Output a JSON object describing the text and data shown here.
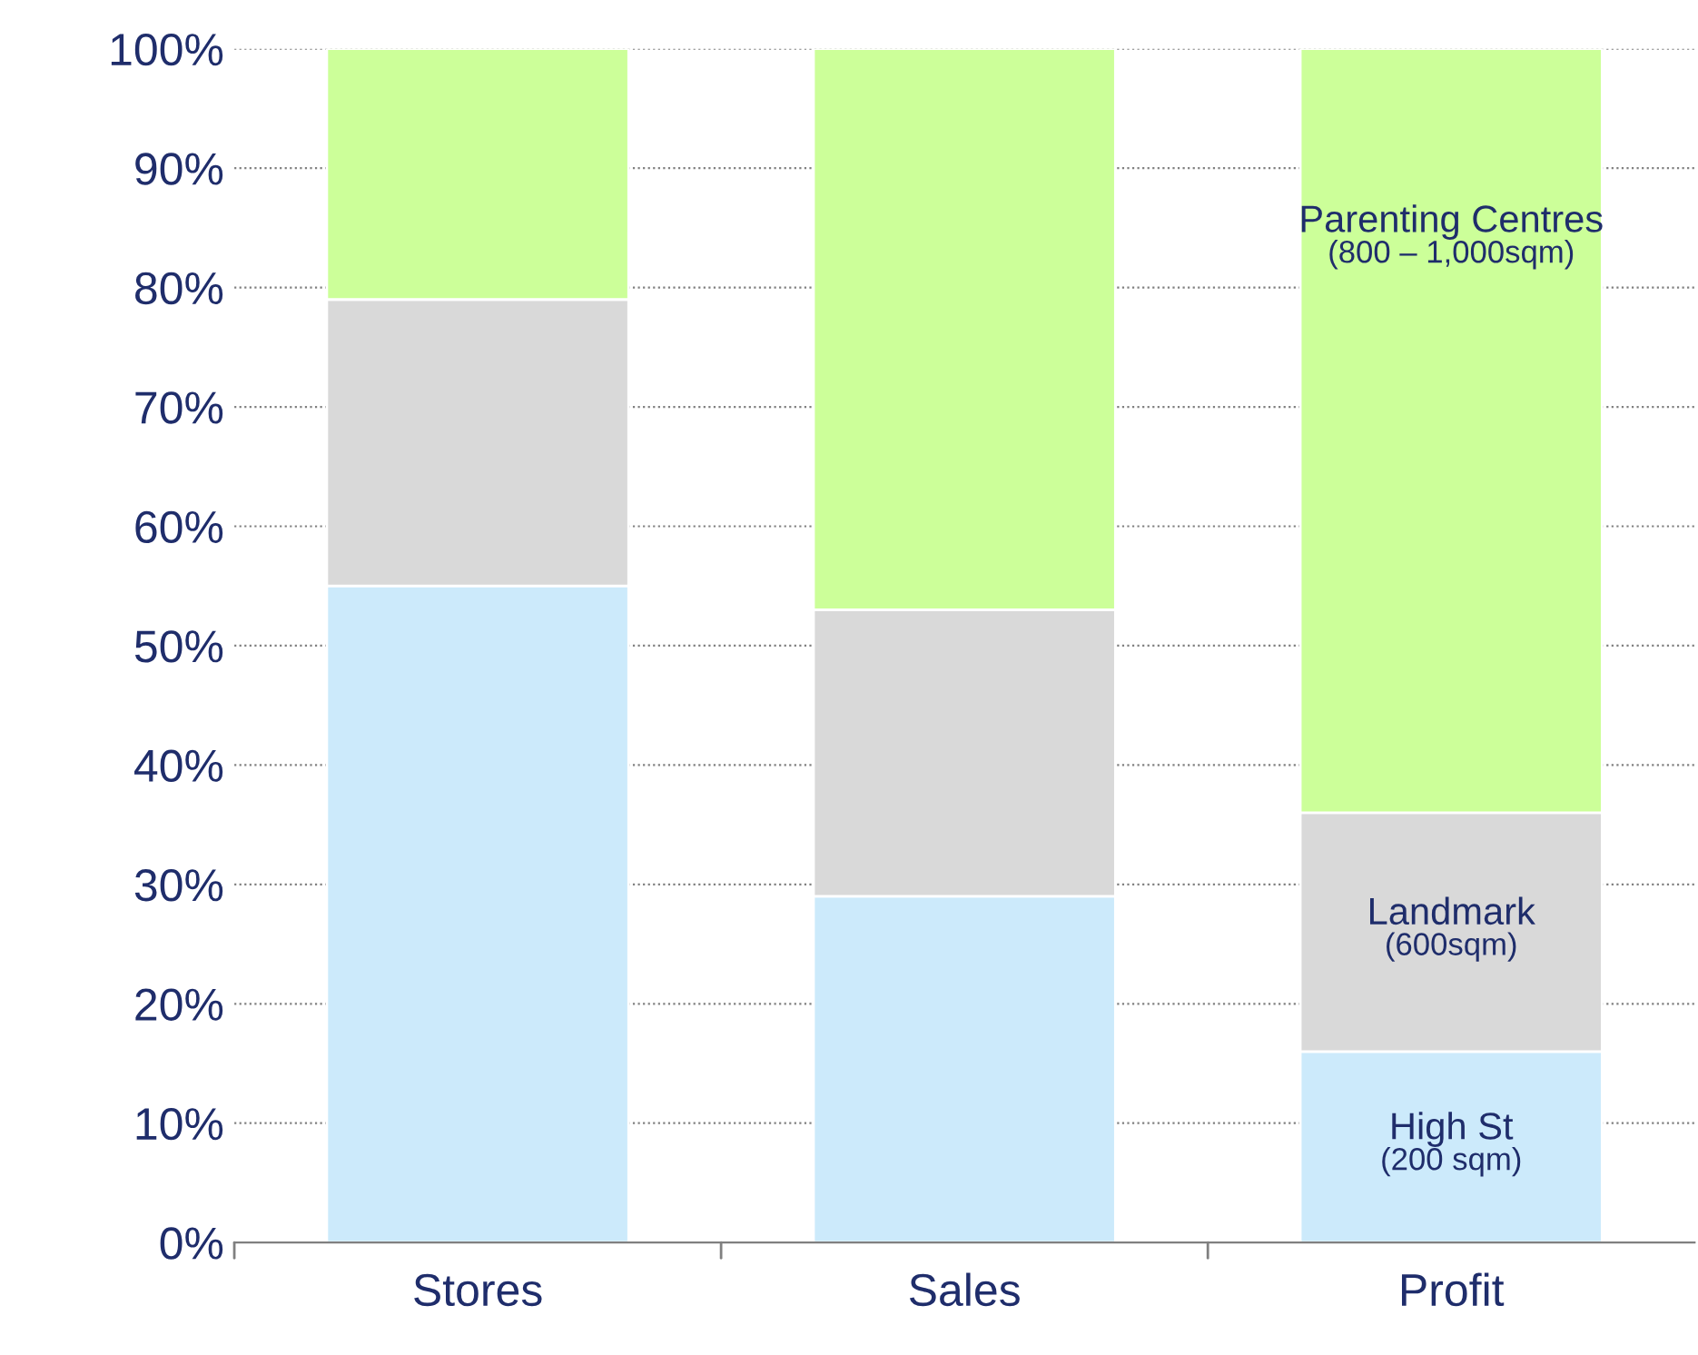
{
  "chart_data": {
    "type": "bar",
    "stacked": true,
    "categories": [
      "Stores",
      "Sales",
      "Profit"
    ],
    "series": [
      {
        "name": "High St\n(200 sqm)",
        "color": "#cceafb",
        "values": [
          55,
          29,
          16
        ]
      },
      {
        "name": "Landmark\n(600sqm)",
        "color": "#d9d9d9",
        "values": [
          24,
          24,
          20
        ]
      },
      {
        "name": "Parenting Centres\n(800 – 1,000sqm)",
        "color": "#ccff99",
        "values": [
          21,
          47,
          64
        ]
      }
    ],
    "ylim": [
      0,
      100
    ],
    "yticks": [
      {
        "value": 0,
        "label": "0%"
      },
      {
        "value": 10,
        "label": "10%"
      },
      {
        "value": 20,
        "label": "20%"
      },
      {
        "value": 30,
        "label": "30%"
      },
      {
        "value": 40,
        "label": "40%"
      },
      {
        "value": 50,
        "label": "50%"
      },
      {
        "value": 60,
        "label": "60%"
      },
      {
        "value": 70,
        "label": "70%"
      },
      {
        "value": 80,
        "label": "80%"
      },
      {
        "value": 90,
        "label": "90%"
      },
      {
        "value": 100,
        "label": "100%"
      }
    ],
    "grid": "y",
    "legend": false
  }
}
